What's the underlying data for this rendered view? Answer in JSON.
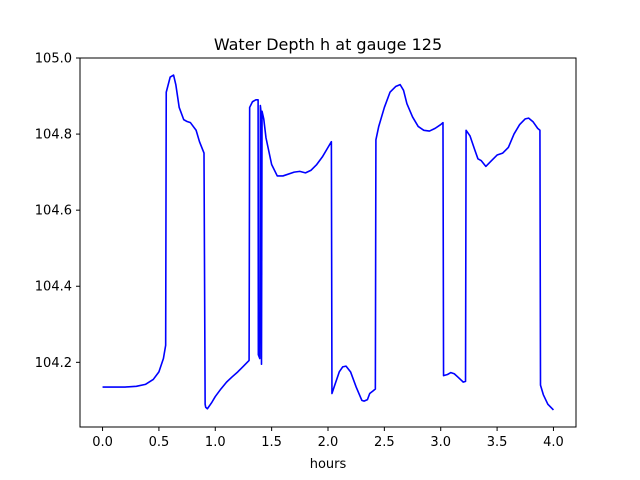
{
  "chart_data": {
    "type": "line",
    "title": "Water Depth h at gauge 125",
    "xlabel": "hours",
    "ylabel": "",
    "xlim": [
      -0.2,
      4.2
    ],
    "ylim": [
      104.03,
      105.0
    ],
    "grid": false,
    "legend": "none",
    "xticks": [
      0.0,
      0.5,
      1.0,
      1.5,
      2.0,
      2.5,
      3.0,
      3.5,
      4.0
    ],
    "xtick_labels": [
      "0.0",
      "0.5",
      "1.0",
      "1.5",
      "2.0",
      "2.5",
      "3.0",
      "3.5",
      "4.0"
    ],
    "yticks": [
      104.2,
      104.4,
      104.6,
      104.8,
      105.0
    ],
    "ytick_labels": [
      "104.2",
      "104.4",
      "104.6",
      "104.8",
      "105.0"
    ],
    "series": [
      {
        "color": "#0000ff",
        "x": [
          0.0,
          0.1,
          0.2,
          0.3,
          0.38,
          0.45,
          0.5,
          0.54,
          0.56,
          0.565,
          0.6,
          0.63,
          0.65,
          0.68,
          0.72,
          0.75,
          0.78,
          0.83,
          0.86,
          0.9,
          0.91,
          0.915,
          0.93,
          0.97,
          1.0,
          1.05,
          1.1,
          1.15,
          1.2,
          1.25,
          1.3,
          1.305,
          1.33,
          1.36,
          1.38,
          1.382,
          1.395,
          1.4,
          1.405,
          1.41,
          1.415,
          1.43,
          1.45,
          1.5,
          1.55,
          1.6,
          1.7,
          1.75,
          1.8,
          1.85,
          1.9,
          1.95,
          2.0,
          2.03,
          2.035,
          2.06,
          2.1,
          2.13,
          2.16,
          2.2,
          2.25,
          2.3,
          2.32,
          2.35,
          2.37,
          2.4,
          2.42,
          2.425,
          2.45,
          2.5,
          2.55,
          2.6,
          2.64,
          2.67,
          2.7,
          2.75,
          2.8,
          2.85,
          2.9,
          2.95,
          3.0,
          3.02,
          3.025,
          3.06,
          3.09,
          3.12,
          3.15,
          3.2,
          3.22,
          3.225,
          3.26,
          3.3,
          3.33,
          3.36,
          3.4,
          3.45,
          3.5,
          3.55,
          3.6,
          3.65,
          3.7,
          3.75,
          3.78,
          3.82,
          3.86,
          3.88,
          3.885,
          3.91,
          3.95,
          4.0
        ],
        "y": [
          104.135,
          104.135,
          104.135,
          104.137,
          104.142,
          104.155,
          104.175,
          104.21,
          104.245,
          104.91,
          104.95,
          104.955,
          104.93,
          104.87,
          104.838,
          104.833,
          104.83,
          104.81,
          104.78,
          104.75,
          104.09,
          104.082,
          104.078,
          104.095,
          104.11,
          104.13,
          104.148,
          104.162,
          104.175,
          104.19,
          104.205,
          104.87,
          104.885,
          104.89,
          104.89,
          104.22,
          104.21,
          104.875,
          104.86,
          104.195,
          104.86,
          104.84,
          104.79,
          104.72,
          104.69,
          104.69,
          104.7,
          104.702,
          104.698,
          104.705,
          104.72,
          104.74,
          104.765,
          104.78,
          104.118,
          104.14,
          104.175,
          104.188,
          104.19,
          104.175,
          104.135,
          104.1,
          104.098,
          104.102,
          104.118,
          104.125,
          104.13,
          104.785,
          104.82,
          104.87,
          104.91,
          104.925,
          104.93,
          104.915,
          104.88,
          104.845,
          104.82,
          104.81,
          104.808,
          104.815,
          104.825,
          104.83,
          104.165,
          104.168,
          104.173,
          104.17,
          104.162,
          104.148,
          104.15,
          104.81,
          104.795,
          104.76,
          104.735,
          104.73,
          104.715,
          104.73,
          104.745,
          104.75,
          104.765,
          104.8,
          104.825,
          104.84,
          104.842,
          104.832,
          104.815,
          104.81,
          104.14,
          104.115,
          104.09,
          104.075
        ]
      }
    ]
  }
}
